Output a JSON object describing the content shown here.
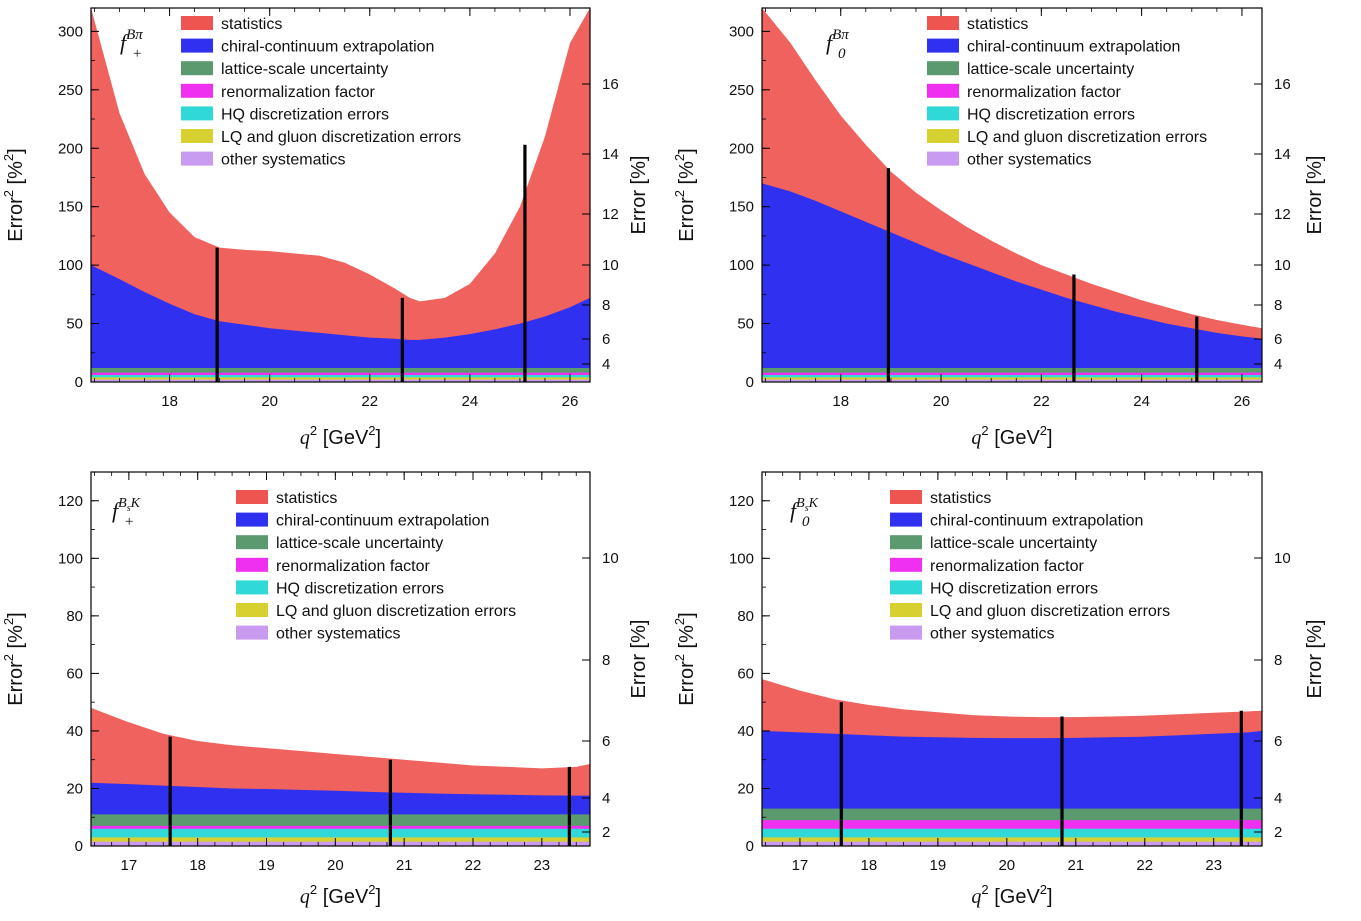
{
  "colors": {
    "statistics": "#ee5550",
    "chiral": "#3030f0",
    "lattice": "#5a9a6e",
    "renorm": "#f030f0",
    "hq": "#30d8d8",
    "lq": "#d6d030",
    "other": "#c89af0"
  },
  "chart_data": [
    {
      "type": "area",
      "panel_label": {
        "main": "f",
        "sup": "Bπ",
        "sub": "+"
      },
      "xlabel": {
        "var": "q",
        "sup": "2",
        "unit": "[GeV",
        "unit_sup": "2",
        "unit_end": "]"
      },
      "ylabel": {
        "main": "Error",
        "sup": "2",
        "rest": "[%",
        "rest_sup": "2",
        "rest_end": "]"
      },
      "y2label": "Error [%]",
      "xlim": [
        16.43,
        26.4
      ],
      "ylim": [
        0,
        320
      ],
      "x_ticks": [
        "18",
        "20",
        "22",
        "24",
        "26"
      ],
      "y_ticks": [
        "0",
        "50",
        "100",
        "150",
        "200",
        "250",
        "300"
      ],
      "y2_ticks": [
        "4",
        "6",
        "8",
        "10",
        "12",
        "14",
        "16"
      ],
      "legend": [
        "statistics",
        "chiral-continuum extrapolation",
        "lattice-scale uncertainty",
        "renormalization factor",
        "HQ discretization errors",
        "LQ and gluon discretization errors",
        "other systematics"
      ],
      "x": [
        16.43,
        17.0,
        17.5,
        18.0,
        18.5,
        19.0,
        19.5,
        20.0,
        20.5,
        21.0,
        21.5,
        22.0,
        22.5,
        22.8,
        23.0,
        23.5,
        24.0,
        24.5,
        25.0,
        25.5,
        26.0,
        26.4
      ],
      "series": [
        {
          "name": "other systematics",
          "values": [
            2,
            2,
            2,
            2,
            2,
            2,
            2,
            2,
            2,
            2,
            2,
            2,
            2,
            2,
            2,
            2,
            2,
            2,
            2,
            2,
            2,
            2
          ]
        },
        {
          "name": "LQ and gluon discretization errors",
          "values": [
            4,
            4,
            4,
            4,
            4,
            4,
            4,
            4,
            4,
            4,
            4,
            4,
            4,
            4,
            4,
            4,
            4,
            4,
            4,
            4,
            4,
            4
          ]
        },
        {
          "name": "HQ discretization errors",
          "values": [
            6,
            6,
            6,
            6,
            6,
            6,
            6,
            6,
            6,
            6,
            6,
            6,
            6,
            6,
            6,
            6,
            6,
            6,
            6,
            6,
            6,
            6
          ]
        },
        {
          "name": "renormalization factor",
          "values": [
            8,
            8,
            8,
            8,
            8,
            8,
            8,
            8,
            8,
            8,
            8,
            8,
            8,
            8,
            8,
            8,
            8,
            8,
            8,
            8,
            8,
            8
          ]
        },
        {
          "name": "lattice-scale uncertainty",
          "values": [
            12,
            12,
            12,
            12,
            12,
            12,
            12,
            12,
            12,
            12,
            12,
            12,
            12,
            12,
            12,
            12,
            12,
            12,
            12,
            12,
            12,
            12
          ]
        },
        {
          "name": "chiral-continuum extrapolation",
          "values": [
            100,
            88,
            77,
            67,
            58,
            52,
            49,
            46,
            44,
            42,
            40,
            38,
            37,
            36,
            36,
            38,
            41,
            45,
            50,
            56,
            64,
            72
          ]
        },
        {
          "name": "statistics",
          "values": [
            320,
            230,
            178,
            145,
            124,
            115,
            113,
            112,
            110,
            108,
            102,
            92,
            80,
            72,
            69,
            72,
            84,
            110,
            150,
            210,
            290,
            320
          ]
        }
      ],
      "markers": [
        {
          "x": 18.95,
          "y": 115
        },
        {
          "x": 22.65,
          "y": 72
        },
        {
          "x": 25.1,
          "y": 203
        }
      ]
    },
    {
      "type": "area",
      "panel_label": {
        "main": "f",
        "sup": "Bπ",
        "sub": "0"
      },
      "xlabel": {
        "var": "q",
        "sup": "2",
        "unit": "[GeV",
        "unit_sup": "2",
        "unit_end": "]"
      },
      "ylabel": {
        "main": "Error",
        "sup": "2",
        "rest": "[%",
        "rest_sup": "2",
        "rest_end": "]"
      },
      "y2label": "Error [%]",
      "xlim": [
        16.43,
        26.4
      ],
      "ylim": [
        0,
        320
      ],
      "x_ticks": [
        "18",
        "20",
        "22",
        "24",
        "26"
      ],
      "y_ticks": [
        "0",
        "50",
        "100",
        "150",
        "200",
        "250",
        "300"
      ],
      "y2_ticks": [
        "4",
        "6",
        "8",
        "10",
        "12",
        "14",
        "16"
      ],
      "legend": [
        "statistics",
        "chiral-continuum extrapolation",
        "lattice-scale uncertainty",
        "renormalization factor",
        "HQ discretization errors",
        "LQ and gluon discretization errors",
        "other systematics"
      ],
      "x": [
        16.43,
        17.0,
        17.5,
        18.0,
        18.5,
        19.0,
        19.5,
        20.0,
        20.5,
        21.0,
        21.5,
        22.0,
        22.5,
        23.0,
        23.5,
        24.0,
        24.5,
        25.0,
        25.5,
        26.0,
        26.4
      ],
      "series": [
        {
          "name": "other systematics",
          "values": [
            2,
            2,
            2,
            2,
            2,
            2,
            2,
            2,
            2,
            2,
            2,
            2,
            2,
            2,
            2,
            2,
            2,
            2,
            2,
            2,
            2
          ]
        },
        {
          "name": "LQ and gluon discretization errors",
          "values": [
            4,
            4,
            4,
            4,
            4,
            4,
            4,
            4,
            4,
            4,
            4,
            4,
            4,
            4,
            4,
            4,
            4,
            4,
            4,
            4,
            4
          ]
        },
        {
          "name": "HQ discretization errors",
          "values": [
            6,
            6,
            6,
            6,
            6,
            6,
            6,
            6,
            6,
            6,
            6,
            6,
            6,
            6,
            6,
            6,
            6,
            6,
            6,
            6,
            6
          ]
        },
        {
          "name": "renormalization factor",
          "values": [
            8,
            8,
            8,
            8,
            8,
            8,
            8,
            8,
            8,
            8,
            8,
            8,
            8,
            8,
            8,
            8,
            8,
            8,
            8,
            8,
            8
          ]
        },
        {
          "name": "lattice-scale uncertainty",
          "values": [
            12,
            12,
            12,
            12,
            12,
            12,
            12,
            12,
            12,
            12,
            12,
            12,
            12,
            12,
            12,
            12,
            12,
            12,
            12,
            12,
            12
          ]
        },
        {
          "name": "chiral-continuum extrapolation",
          "values": [
            170,
            163,
            155,
            146,
            137,
            128,
            119,
            110,
            102,
            94,
            86,
            79,
            72,
            66,
            60,
            55,
            50,
            46,
            42,
            39,
            37
          ]
        },
        {
          "name": "statistics",
          "values": [
            320,
            290,
            258,
            228,
            203,
            180,
            162,
            147,
            133,
            121,
            110,
            100,
            92,
            84,
            77,
            70,
            64,
            58,
            53,
            49,
            46
          ]
        }
      ],
      "markers": [
        {
          "x": 18.95,
          "y": 183
        },
        {
          "x": 22.65,
          "y": 92
        },
        {
          "x": 25.1,
          "y": 56
        }
      ]
    },
    {
      "type": "area",
      "panel_label": {
        "main": "f",
        "sup": "BsK",
        "sub": "+"
      },
      "xlabel": {
        "var": "q",
        "sup": "2",
        "unit": "[GeV",
        "unit_sup": "2",
        "unit_end": "]"
      },
      "ylabel": {
        "main": "Error",
        "sup": "2",
        "rest": "[%",
        "rest_sup": "2",
        "rest_end": "]"
      },
      "y2label": "Error [%]",
      "xlim": [
        16.45,
        23.7
      ],
      "ylim": [
        0,
        130
      ],
      "x_ticks": [
        "17",
        "18",
        "19",
        "20",
        "21",
        "22",
        "23"
      ],
      "y_ticks": [
        "0",
        "20",
        "40",
        "60",
        "80",
        "100",
        "120"
      ],
      "y2_ticks": [
        "2",
        "4",
        "6",
        "8",
        "10"
      ],
      "legend": [
        "statistics",
        "chiral-continuum extrapolation",
        "lattice-scale uncertainty",
        "renormalization factor",
        "HQ discretization errors",
        "LQ and gluon discretization errors",
        "other systematics"
      ],
      "x": [
        16.45,
        17.0,
        17.5,
        18.0,
        18.5,
        19.0,
        19.5,
        20.0,
        20.5,
        21.0,
        21.5,
        22.0,
        22.5,
        23.0,
        23.5,
        23.7
      ],
      "series": [
        {
          "name": "other systematics",
          "values": [
            1.5,
            1.5,
            1.5,
            1.5,
            1.5,
            1.5,
            1.5,
            1.5,
            1.5,
            1.5,
            1.5,
            1.5,
            1.5,
            1.5,
            1.5,
            1.5
          ]
        },
        {
          "name": "LQ and gluon discretization errors",
          "values": [
            3,
            3,
            3,
            3,
            3,
            3,
            3,
            3,
            3,
            3,
            3,
            3,
            3,
            3,
            3,
            3
          ]
        },
        {
          "name": "HQ discretization errors",
          "values": [
            6,
            6,
            6,
            6,
            6,
            6,
            6,
            6,
            6,
            6,
            6,
            6,
            6,
            6,
            6,
            6
          ]
        },
        {
          "name": "renormalization factor",
          "values": [
            7,
            7,
            7,
            7,
            7,
            7,
            7,
            7,
            7,
            7,
            7,
            7,
            7,
            7,
            7,
            7
          ]
        },
        {
          "name": "lattice-scale uncertainty",
          "values": [
            11,
            11,
            11,
            11,
            11,
            11,
            11,
            11,
            11,
            11,
            11,
            11,
            11,
            11,
            11,
            11
          ]
        },
        {
          "name": "chiral-continuum extrapolation",
          "values": [
            22,
            21.5,
            21,
            20.5,
            20,
            19.8,
            19.5,
            19.2,
            18.8,
            18.5,
            18.2,
            18,
            17.8,
            17.6,
            17.5,
            17.5
          ]
        },
        {
          "name": "statistics",
          "values": [
            48,
            43,
            39,
            36.5,
            35,
            34,
            33,
            32,
            31,
            30,
            29,
            28,
            27.5,
            27,
            27.5,
            28.5
          ]
        }
      ],
      "markers": [
        {
          "x": 17.6,
          "y": 38
        },
        {
          "x": 20.8,
          "y": 30
        },
        {
          "x": 23.4,
          "y": 27.5
        }
      ]
    },
    {
      "type": "area",
      "panel_label": {
        "main": "f",
        "sup": "BsK",
        "sub": "0"
      },
      "xlabel": {
        "var": "q",
        "sup": "2",
        "unit": "[GeV",
        "unit_sup": "2",
        "unit_end": "]"
      },
      "ylabel": {
        "main": "Error",
        "sup": "2",
        "rest": "[%",
        "rest_sup": "2",
        "rest_end": "]"
      },
      "y2label": "Error [%]",
      "xlim": [
        16.45,
        23.7
      ],
      "ylim": [
        0,
        130
      ],
      "x_ticks": [
        "17",
        "18",
        "19",
        "20",
        "21",
        "22",
        "23"
      ],
      "y_ticks": [
        "0",
        "20",
        "40",
        "60",
        "80",
        "100",
        "120"
      ],
      "y2_ticks": [
        "2",
        "4",
        "6",
        "8",
        "10"
      ],
      "legend": [
        "statistics",
        "chiral-continuum extrapolation",
        "lattice-scale uncertainty",
        "renormalization factor",
        "HQ discretization errors",
        "LQ and gluon discretization errors",
        "other systematics"
      ],
      "x": [
        16.45,
        17.0,
        17.5,
        18.0,
        18.5,
        19.0,
        19.5,
        20.0,
        20.5,
        21.0,
        21.5,
        22.0,
        22.5,
        23.0,
        23.5,
        23.7
      ],
      "series": [
        {
          "name": "other systematics",
          "values": [
            1.5,
            1.5,
            1.5,
            1.5,
            1.5,
            1.5,
            1.5,
            1.5,
            1.5,
            1.5,
            1.5,
            1.5,
            1.5,
            1.5,
            1.5,
            1.5
          ]
        },
        {
          "name": "LQ and gluon discretization errors",
          "values": [
            3,
            3,
            3,
            3,
            3,
            3,
            3,
            3,
            3,
            3,
            3,
            3,
            3,
            3,
            3,
            3
          ]
        },
        {
          "name": "HQ discretization errors",
          "values": [
            6,
            6,
            6,
            6,
            6,
            6,
            6,
            6,
            6,
            6,
            6,
            6,
            6,
            6,
            6,
            6
          ]
        },
        {
          "name": "renormalization factor",
          "values": [
            9,
            9,
            9,
            9,
            9,
            9,
            9,
            9,
            9,
            9,
            9,
            9,
            9,
            9,
            9,
            9
          ]
        },
        {
          "name": "lattice-scale uncertainty",
          "values": [
            13,
            13,
            13,
            13,
            13,
            13,
            13,
            13,
            13,
            13,
            13,
            13,
            13,
            13,
            13,
            13
          ]
        },
        {
          "name": "chiral-continuum extrapolation",
          "values": [
            40,
            39.5,
            39,
            38.5,
            38,
            37.8,
            37.6,
            37.5,
            37.5,
            37.6,
            37.8,
            38,
            38.5,
            39,
            39.5,
            40
          ]
        },
        {
          "name": "statistics",
          "values": [
            58,
            54,
            51,
            49,
            47.5,
            46.5,
            45.5,
            45,
            44.8,
            44.8,
            45,
            45.3,
            45.8,
            46.3,
            46.8,
            47
          ]
        }
      ],
      "markers": [
        {
          "x": 17.6,
          "y": 50
        },
        {
          "x": 20.8,
          "y": 45
        },
        {
          "x": 23.4,
          "y": 47
        }
      ]
    }
  ]
}
